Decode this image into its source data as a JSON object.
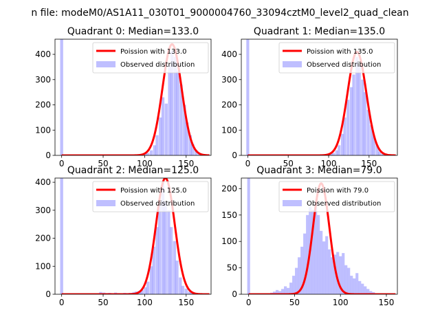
{
  "figure": {
    "suptitle": "n file: modeM0/AS1A11_030T01_9000004760_33094cztM0_level2_quad_clean"
  },
  "chart_data": [
    {
      "type": "bar",
      "title": "Quadrant 0: Median=133.0",
      "xlim": [
        -8,
        180
      ],
      "ylim": [
        0,
        460
      ],
      "xticks": [
        0,
        50,
        100,
        150
      ],
      "yticks": [
        0,
        100,
        200,
        300,
        400
      ],
      "poisson_mean": 133.0,
      "poisson_peak": 440,
      "poisson_sigma": 11.5,
      "bin_width": 3.6,
      "bins": [
        {
          "x": 0,
          "y": 460
        },
        {
          "x": 47,
          "y": 2
        },
        {
          "x": 65,
          "y": 3
        },
        {
          "x": 72,
          "y": 2
        },
        {
          "x": 79,
          "y": 3
        },
        {
          "x": 86,
          "y": 4
        },
        {
          "x": 94,
          "y": 3
        },
        {
          "x": 97,
          "y": 5
        },
        {
          "x": 101,
          "y": 6
        },
        {
          "x": 104,
          "y": 10
        },
        {
          "x": 108,
          "y": 20
        },
        {
          "x": 112,
          "y": 40
        },
        {
          "x": 115,
          "y": 80
        },
        {
          "x": 119,
          "y": 150
        },
        {
          "x": 122,
          "y": 230
        },
        {
          "x": 126,
          "y": 205
        },
        {
          "x": 130,
          "y": 355
        },
        {
          "x": 133,
          "y": 415
        },
        {
          "x": 137,
          "y": 390
        },
        {
          "x": 140,
          "y": 335
        },
        {
          "x": 144,
          "y": 280
        },
        {
          "x": 148,
          "y": 200
        },
        {
          "x": 151,
          "y": 130
        },
        {
          "x": 155,
          "y": 80
        },
        {
          "x": 158,
          "y": 45
        },
        {
          "x": 162,
          "y": 20
        },
        {
          "x": 166,
          "y": 8
        },
        {
          "x": 169,
          "y": 3
        }
      ],
      "legend": [
        "Poission with 133.0",
        "Observed distribution"
      ]
    },
    {
      "type": "bar",
      "title": "Quadrant 1: Median=135.0",
      "xlim": [
        -8,
        185
      ],
      "ylim": [
        0,
        460
      ],
      "xticks": [
        0,
        50,
        100,
        150
      ],
      "yticks": [
        0,
        100,
        200,
        300,
        400
      ],
      "poisson_mean": 135.0,
      "poisson_peak": 410,
      "poisson_sigma": 11.6,
      "bin_width": 3.6,
      "bins": [
        {
          "x": 0,
          "y": 460
        },
        {
          "x": 60,
          "y": 2
        },
        {
          "x": 80,
          "y": 3
        },
        {
          "x": 92,
          "y": 2
        },
        {
          "x": 99,
          "y": 3
        },
        {
          "x": 103,
          "y": 6
        },
        {
          "x": 106,
          "y": 10
        },
        {
          "x": 110,
          "y": 20
        },
        {
          "x": 113,
          "y": 40
        },
        {
          "x": 117,
          "y": 85
        },
        {
          "x": 120,
          "y": 150
        },
        {
          "x": 124,
          "y": 220
        },
        {
          "x": 128,
          "y": 270
        },
        {
          "x": 131,
          "y": 320
        },
        {
          "x": 135,
          "y": 390
        },
        {
          "x": 138,
          "y": 355
        },
        {
          "x": 142,
          "y": 300
        },
        {
          "x": 145,
          "y": 250
        },
        {
          "x": 149,
          "y": 180
        },
        {
          "x": 153,
          "y": 120
        },
        {
          "x": 156,
          "y": 75
        },
        {
          "x": 160,
          "y": 40
        },
        {
          "x": 163,
          "y": 15
        },
        {
          "x": 167,
          "y": 6
        },
        {
          "x": 171,
          "y": 2
        }
      ],
      "legend": [
        "Poission with 135.0",
        "Observed distribution"
      ]
    },
    {
      "type": "bar",
      "title": "Quadrant 2: Median=125.0",
      "xlim": [
        -8,
        180
      ],
      "ylim": [
        0,
        415
      ],
      "xticks": [
        0,
        50,
        100,
        150
      ],
      "yticks": [
        0,
        100,
        200,
        300,
        400
      ],
      "poisson_mean": 125.0,
      "poisson_peak": 415,
      "poisson_sigma": 11.2,
      "bin_width": 3.6,
      "bins": [
        {
          "x": 0,
          "y": 415
        },
        {
          "x": 47,
          "y": 8
        },
        {
          "x": 51,
          "y": 6
        },
        {
          "x": 55,
          "y": 4
        },
        {
          "x": 58,
          "y": 5
        },
        {
          "x": 62,
          "y": 3
        },
        {
          "x": 65,
          "y": 6
        },
        {
          "x": 69,
          "y": 4
        },
        {
          "x": 72,
          "y": 3
        },
        {
          "x": 76,
          "y": 5
        },
        {
          "x": 80,
          "y": 4
        },
        {
          "x": 83,
          "y": 5
        },
        {
          "x": 87,
          "y": 8
        },
        {
          "x": 90,
          "y": 10
        },
        {
          "x": 94,
          "y": 12
        },
        {
          "x": 97,
          "y": 15
        },
        {
          "x": 101,
          "y": 25
        },
        {
          "x": 104,
          "y": 45
        },
        {
          "x": 108,
          "y": 100
        },
        {
          "x": 111,
          "y": 170
        },
        {
          "x": 115,
          "y": 240
        },
        {
          "x": 118,
          "y": 320
        },
        {
          "x": 122,
          "y": 400
        },
        {
          "x": 125,
          "y": 330
        },
        {
          "x": 129,
          "y": 300
        },
        {
          "x": 132,
          "y": 240
        },
        {
          "x": 136,
          "y": 190
        },
        {
          "x": 139,
          "y": 120
        },
        {
          "x": 143,
          "y": 60
        },
        {
          "x": 146,
          "y": 30
        },
        {
          "x": 150,
          "y": 20
        },
        {
          "x": 154,
          "y": 10
        },
        {
          "x": 157,
          "y": 8
        },
        {
          "x": 161,
          "y": 5
        },
        {
          "x": 164,
          "y": 3
        }
      ],
      "legend": [
        "Poission with 125.0",
        "Observed distribution"
      ]
    },
    {
      "type": "bar",
      "title": "Quadrant 3: Median=79.0",
      "xlim": [
        -8,
        162
      ],
      "ylim": [
        0,
        220
      ],
      "xticks": [
        0,
        50,
        100,
        150
      ],
      "yticks": [
        0,
        50,
        100,
        150,
        200
      ],
      "poisson_mean": 79.0,
      "poisson_peak": 210,
      "poisson_sigma": 8.9,
      "bin_width": 3.1,
      "bins": [
        {
          "x": 0,
          "y": 220
        },
        {
          "x": 25,
          "y": 3
        },
        {
          "x": 28,
          "y": 5
        },
        {
          "x": 31,
          "y": 8
        },
        {
          "x": 34,
          "y": 6
        },
        {
          "x": 37,
          "y": 10
        },
        {
          "x": 40,
          "y": 15
        },
        {
          "x": 43,
          "y": 12
        },
        {
          "x": 46,
          "y": 22
        },
        {
          "x": 49,
          "y": 35
        },
        {
          "x": 52,
          "y": 50
        },
        {
          "x": 55,
          "y": 70
        },
        {
          "x": 58,
          "y": 90
        },
        {
          "x": 61,
          "y": 115
        },
        {
          "x": 64,
          "y": 150
        },
        {
          "x": 67,
          "y": 165
        },
        {
          "x": 70,
          "y": 160
        },
        {
          "x": 73,
          "y": 175
        },
        {
          "x": 76,
          "y": 150
        },
        {
          "x": 79,
          "y": 120
        },
        {
          "x": 82,
          "y": 100
        },
        {
          "x": 85,
          "y": 110
        },
        {
          "x": 88,
          "y": 85
        },
        {
          "x": 91,
          "y": 70
        },
        {
          "x": 94,
          "y": 75
        },
        {
          "x": 97,
          "y": 80
        },
        {
          "x": 100,
          "y": 72
        },
        {
          "x": 103,
          "y": 78
        },
        {
          "x": 106,
          "y": 55
        },
        {
          "x": 109,
          "y": 50
        },
        {
          "x": 112,
          "y": 35
        },
        {
          "x": 115,
          "y": 30
        },
        {
          "x": 118,
          "y": 40
        },
        {
          "x": 121,
          "y": 25
        },
        {
          "x": 124,
          "y": 20
        },
        {
          "x": 127,
          "y": 15
        },
        {
          "x": 130,
          "y": 10
        },
        {
          "x": 133,
          "y": 6
        },
        {
          "x": 136,
          "y": 4
        },
        {
          "x": 139,
          "y": 2
        }
      ],
      "legend": [
        "Poission with 79.0",
        "Observed distribution"
      ]
    }
  ],
  "colors": {
    "poisson": "#ff0000",
    "observed": "#8080ff",
    "observed_opacity": 0.5
  }
}
